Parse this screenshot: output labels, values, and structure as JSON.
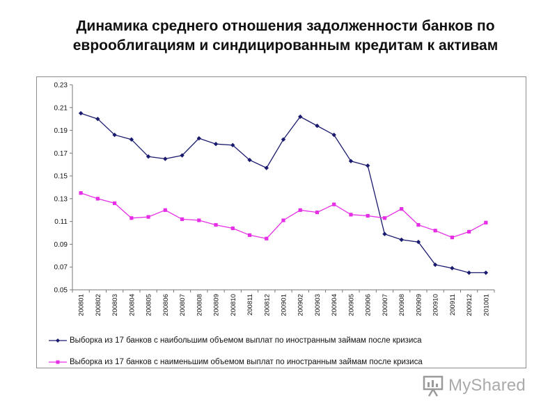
{
  "title_line1": "Динамика среднего отношения задолженности банков по",
  "title_line2": "еврооблигациям и синдицированным кредитам к активам",
  "watermark": "MyShared",
  "chart_data": {
    "type": "line",
    "categories": [
      "200801",
      "200802",
      "200803",
      "200804",
      "200805",
      "200806",
      "200807",
      "200808",
      "200809",
      "200810",
      "200811",
      "200812",
      "200901",
      "200902",
      "200903",
      "200904",
      "200905",
      "200906",
      "200907",
      "200908",
      "200909",
      "200910",
      "200911",
      "200912",
      "201001"
    ],
    "ylim": [
      0.05,
      0.23
    ],
    "yticks": [
      "0.23",
      "0.21",
      "0.19",
      "0.17",
      "0.15",
      "0.13",
      "0.11",
      "0.09",
      "0.07",
      "0.05"
    ],
    "grid": false,
    "legend_position": "bottom",
    "series": [
      {
        "name": "Выборка из 17 банков с наибольшим объемом выплат по иностранным займам после кризиса",
        "color": "#1a1a6e",
        "marker": "diamond",
        "values": [
          0.205,
          0.2,
          0.186,
          0.182,
          0.167,
          0.165,
          0.168,
          0.183,
          0.178,
          0.177,
          0.164,
          0.157,
          0.182,
          0.202,
          0.194,
          0.186,
          0.163,
          0.159,
          0.099,
          0.094,
          0.092,
          0.072,
          0.069,
          0.065,
          0.065
        ]
      },
      {
        "name": "Выборка из 17 банков с наименьшим объемом выплат по иностранным займам после кризиса",
        "color": "#e62ee6",
        "marker": "square",
        "values": [
          0.135,
          0.13,
          0.126,
          0.113,
          0.114,
          0.12,
          0.112,
          0.111,
          0.107,
          0.104,
          0.098,
          0.095,
          0.111,
          0.12,
          0.118,
          0.125,
          0.116,
          0.115,
          0.113,
          0.121,
          0.107,
          0.102,
          0.096,
          0.101,
          0.109
        ]
      }
    ]
  }
}
